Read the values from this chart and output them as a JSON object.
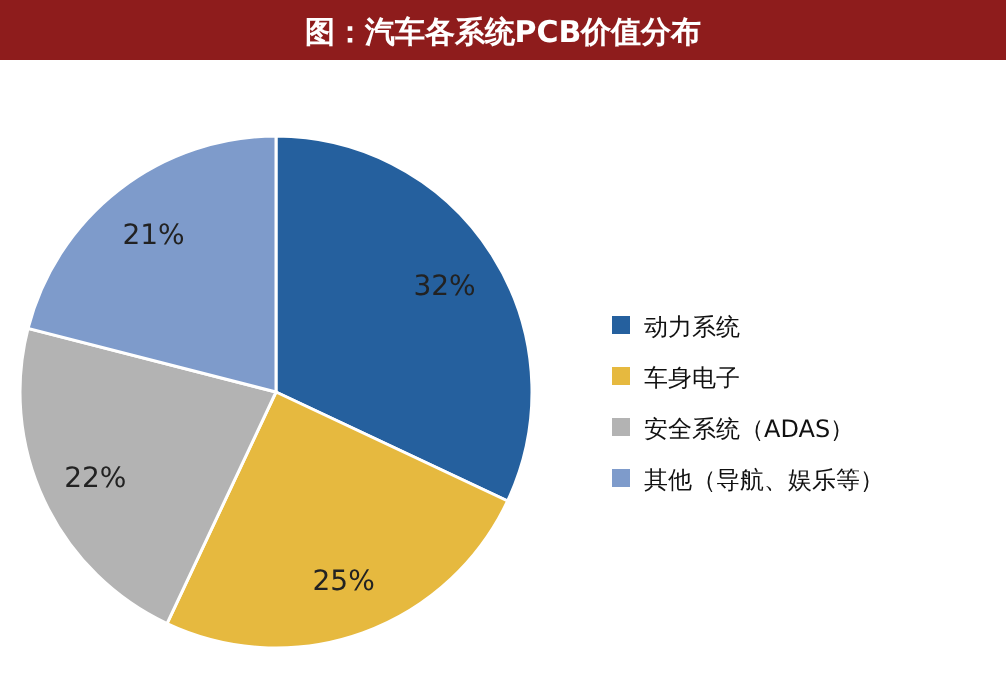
{
  "chart_data": {
    "type": "pie",
    "title": "图：汽车各系统PCB价值分布",
    "categories": [
      "动力系统",
      "车身电子",
      "安全系统（ADAS）",
      "其他（导航、娱乐等）"
    ],
    "values": [
      32,
      25,
      22,
      21
    ],
    "value_labels": [
      "32%",
      "25%",
      "22%",
      "21%"
    ],
    "colors": [
      "#25609e",
      "#e6b93f",
      "#b3b3b3",
      "#7e9bcb"
    ],
    "legend": "right"
  }
}
